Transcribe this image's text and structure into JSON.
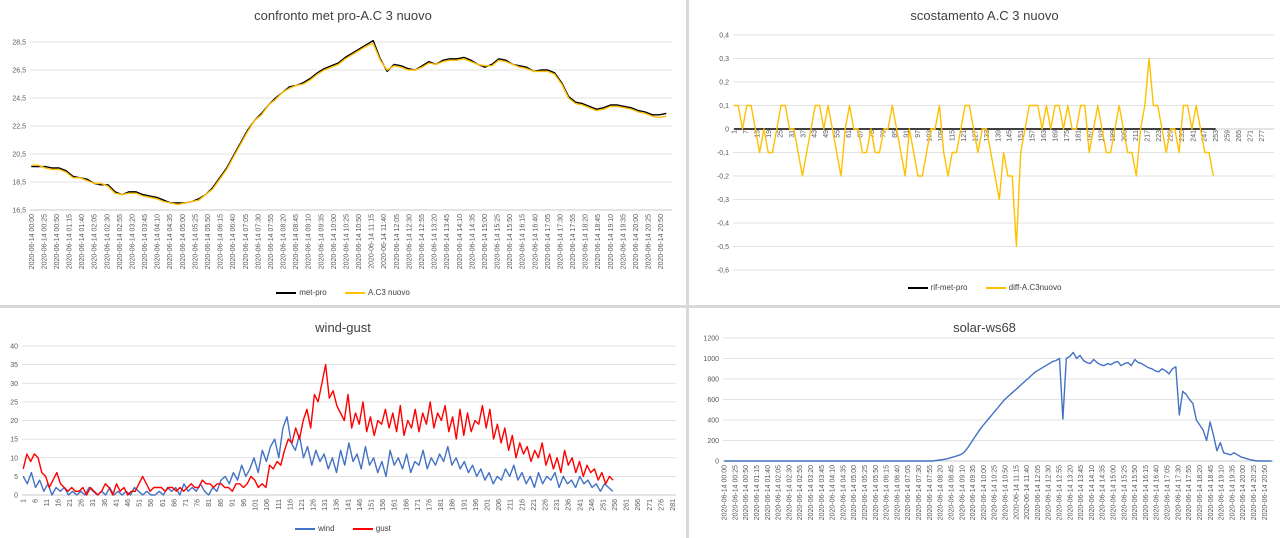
{
  "colors": {
    "black": "#000000",
    "orange": "#ffc000",
    "blue": "#4472c4",
    "red": "#ff0000",
    "grid": "#d9d9d9",
    "text": "#595959"
  },
  "chart_data": [
    {
      "type": "line",
      "title": "confronto met pro-A.C 3 nuovo",
      "ylim": [
        16.5,
        29.5
      ],
      "yticks": [
        "16,5",
        "18,5",
        "20,5",
        "22,5",
        "24,5",
        "26,5",
        "28,5"
      ],
      "xticks": [
        "2020-06-14 00:00",
        "2020-06-14 00:25",
        "2020-06-14 00:50",
        "2020-06-14 01:15",
        "2020-06-14 01:40",
        "2020-06-14 02:05",
        "2020-06-14 02:30",
        "2020-06-14 02:55",
        "2020-06-14 03:20",
        "2020-06-14 03:45",
        "2020-06-14 04:10",
        "2020-06-14 04:35",
        "2020-06-14 05:00",
        "2020-06-14 05:25",
        "2020-06-14 05:50",
        "2020-06-14 06:15",
        "2020-06-14 06:40",
        "2020-06-14 07:05",
        "2020-06-14 07:30",
        "2020-06-14 07:55",
        "2020-06-14 08:20",
        "2020-06-14 08:45",
        "2020-06-14 09:10",
        "2020-06-14 09:35",
        "2020-06-14 10:00",
        "2020-06-14 10:25",
        "2020-06-14 10:50",
        "2020-06-14 11:15",
        "2020-06-14 11:40",
        "2020-06-14 12:05",
        "2020-06-14 12:30",
        "2020-06-14 12:55",
        "2020-06-14 13:20",
        "2020-06-14 13:45",
        "2020-06-14 14:10",
        "2020-06-14 14:35",
        "2020-06-14 15:00",
        "2020-06-14 15:25",
        "2020-06-14 15:50",
        "2020-06-14 16:15",
        "2020-06-14 16:40",
        "2020-06-14 17:05",
        "2020-06-14 17:30",
        "2020-06-14 17:55",
        "2020-06-14 18:20",
        "2020-06-14 18:45",
        "2020-06-14 19:10",
        "2020-06-14 19:35",
        "2020-06-14 20:00",
        "2020-06-14 20:25",
        "2020-06-14 20:50"
      ],
      "x_interval_points": 5,
      "series": [
        {
          "name": "met-pro",
          "color": "#000000",
          "values": [
            19.6,
            19.6,
            19.6,
            19.5,
            19.5,
            19.3,
            18.9,
            18.8,
            18.7,
            18.4,
            18.3,
            18.3,
            17.8,
            17.6,
            17.8,
            17.8,
            17.6,
            17.5,
            17.4,
            17.2,
            17.0,
            17.0,
            17.0,
            17.1,
            17.3,
            17.6,
            18.1,
            18.8,
            19.5,
            20.4,
            21.3,
            22.2,
            22.9,
            23.4,
            24.0,
            24.5,
            24.9,
            25.3,
            25.4,
            25.6,
            25.9,
            26.3,
            26.6,
            26.8,
            27.0,
            27.4,
            27.7,
            28.0,
            28.3,
            28.6,
            27.3,
            26.4,
            26.9,
            26.8,
            26.6,
            26.5,
            26.8,
            27.1,
            26.9,
            27.2,
            27.3,
            27.3,
            27.4,
            27.2,
            26.9,
            26.7,
            26.9,
            27.3,
            27.2,
            26.9,
            26.8,
            26.7,
            26.4,
            26.5,
            26.5,
            26.3,
            25.6,
            24.6,
            24.2,
            24.1,
            23.9,
            23.7,
            23.8,
            24.0,
            24.0,
            23.9,
            23.8,
            23.6,
            23.5,
            23.3,
            23.3,
            23.4
          ]
        },
        {
          "name": "A.C3 nuovo",
          "color": "#ffc000",
          "values": [
            19.7,
            19.7,
            19.5,
            19.4,
            19.4,
            19.2,
            18.8,
            18.8,
            18.6,
            18.4,
            18.4,
            18.2,
            17.7,
            17.6,
            17.7,
            17.7,
            17.5,
            17.4,
            17.3,
            17.1,
            17.0,
            16.9,
            17.0,
            17.1,
            17.2,
            17.6,
            18.0,
            18.7,
            19.4,
            20.3,
            21.2,
            22.1,
            22.9,
            23.3,
            24.0,
            24.4,
            24.9,
            25.2,
            25.4,
            25.5,
            25.8,
            26.2,
            26.5,
            26.7,
            26.9,
            27.3,
            27.6,
            27.9,
            28.2,
            28.4,
            27.2,
            26.5,
            26.8,
            26.7,
            26.5,
            26.5,
            26.7,
            27.0,
            26.9,
            27.1,
            27.2,
            27.2,
            27.3,
            27.1,
            26.9,
            26.8,
            26.8,
            27.2,
            27.1,
            26.9,
            26.7,
            26.6,
            26.4,
            26.4,
            26.4,
            26.2,
            25.5,
            24.5,
            24.1,
            24.0,
            23.8,
            23.6,
            23.7,
            23.9,
            23.9,
            23.8,
            23.7,
            23.5,
            23.4,
            23.2,
            23.1,
            23.2
          ]
        }
      ]
    },
    {
      "type": "line",
      "title": "scostamento A.C 3 nuovo",
      "ylim": [
        -0.6,
        0.4
      ],
      "yticks": [
        "-0,6",
        "-0,5",
        "-0,4",
        "-0,3",
        "-0,2",
        "-0,1",
        "0",
        "0,1",
        "0,2",
        "0,3",
        "0,4"
      ],
      "xticks": [
        "1",
        "7",
        "13",
        "19",
        "25",
        "31",
        "37",
        "43",
        "49",
        "55",
        "61",
        "67",
        "73",
        "79",
        "85",
        "91",
        "97",
        "103",
        "109",
        "115",
        "121",
        "127",
        "133",
        "139",
        "145",
        "151",
        "157",
        "163",
        "169",
        "175",
        "181",
        "187",
        "193",
        "199",
        "205",
        "211",
        "217",
        "223",
        "229",
        "235",
        "241",
        "247",
        "253",
        "259",
        "265",
        "271",
        "277"
      ],
      "xmax": 283,
      "series": [
        {
          "name": "rif-met-pro",
          "color": "#000000",
          "constant": 0,
          "length": 253
        },
        {
          "name": "diff-A.C3nuovo",
          "color": "#ffc000",
          "values": [
            0.1,
            0.1,
            0,
            0.1,
            0.1,
            0,
            -0.1,
            0,
            -0.1,
            -0.1,
            0,
            0.1,
            0.1,
            0,
            0,
            -0.1,
            -0.2,
            -0.1,
            0,
            0.1,
            0.1,
            0,
            0.1,
            0,
            -0.1,
            -0.2,
            0,
            0.1,
            0,
            0,
            -0.1,
            -0.1,
            0,
            -0.1,
            -0.1,
            0,
            0,
            0.1,
            0,
            -0.1,
            -0.2,
            0,
            -0.1,
            -0.2,
            -0.2,
            -0.1,
            0,
            0,
            0.1,
            -0.1,
            -0.2,
            -0.1,
            -0.1,
            0,
            0.1,
            0.1,
            0,
            -0.1,
            0,
            0,
            -0.1,
            -0.2,
            -0.3,
            -0.1,
            -0.2,
            -0.2,
            -0.5,
            -0.1,
            0,
            0.1,
            0.1,
            0.1,
            0,
            0.1,
            0,
            0.1,
            0.1,
            0,
            0.1,
            0,
            0,
            0.1,
            0.1,
            -0.1,
            0,
            0.1,
            0,
            -0.1,
            -0.1,
            0,
            0.1,
            0,
            -0.1,
            -0.1,
            -0.2,
            0,
            0.1,
            0.3,
            0.1,
            0.1,
            0,
            -0.1,
            0,
            0,
            -0.1,
            0.1,
            0.1,
            0,
            0.1,
            0,
            -0.1,
            -0.1,
            -0.2
          ]
        }
      ]
    },
    {
      "type": "line",
      "title": "wind-gust",
      "ylim": [
        0,
        40
      ],
      "yticks": [
        "0",
        "5",
        "10",
        "15",
        "20",
        "25",
        "30",
        "35",
        "40"
      ],
      "xticks": [
        "1",
        "6",
        "11",
        "16",
        "21",
        "26",
        "31",
        "36",
        "41",
        "46",
        "51",
        "56",
        "61",
        "66",
        "71",
        "76",
        "81",
        "86",
        "91",
        "96",
        "101",
        "106",
        "111",
        "116",
        "121",
        "126",
        "131",
        "136",
        "141",
        "146",
        "151",
        "156",
        "161",
        "166",
        "171",
        "176",
        "181",
        "186",
        "191",
        "196",
        "201",
        "206",
        "211",
        "216",
        "221",
        "226",
        "231",
        "236",
        "241",
        "246",
        "251",
        "256",
        "261",
        "266",
        "271",
        "276",
        "281"
      ],
      "xmax": 282,
      "series": [
        {
          "name": "wind",
          "color": "#4472c4",
          "values": [
            5,
            3,
            6,
            2,
            4,
            1,
            3,
            0,
            2,
            1,
            2,
            0,
            1,
            0,
            1,
            0,
            2,
            1,
            0,
            1,
            0,
            2,
            0,
            1,
            0,
            1,
            0,
            2,
            1,
            0,
            1,
            0,
            0,
            1,
            0,
            2,
            1,
            2,
            0,
            3,
            1,
            2,
            1,
            3,
            1,
            0,
            2,
            1,
            4,
            5,
            3,
            6,
            4,
            8,
            5,
            7,
            10,
            6,
            12,
            9,
            13,
            15,
            10,
            18,
            21,
            14,
            12,
            16,
            10,
            13,
            8,
            12,
            9,
            11,
            7,
            10,
            6,
            12,
            8,
            14,
            9,
            11,
            7,
            13,
            8,
            10,
            6,
            9,
            5,
            12,
            8,
            10,
            7,
            11,
            6,
            9,
            8,
            12,
            7,
            10,
            8,
            11,
            9,
            13,
            8,
            10,
            7,
            9,
            6,
            8,
            5,
            7,
            4,
            6,
            3,
            5,
            4,
            7,
            5,
            8,
            4,
            6,
            3,
            5,
            2,
            6,
            3,
            5,
            4,
            6,
            2,
            5,
            3,
            4,
            2,
            5,
            3,
            4,
            2,
            3,
            1,
            3,
            2,
            1
          ]
        },
        {
          "name": "gust",
          "color": "#ff0000",
          "values": [
            7,
            11,
            9,
            11,
            10,
            6,
            5,
            2,
            4,
            6,
            3,
            2,
            1,
            2,
            1,
            1,
            2,
            0,
            2,
            1,
            0,
            1,
            3,
            2,
            0,
            3,
            1,
            2,
            0,
            1,
            1,
            3,
            5,
            3,
            1,
            2,
            2,
            2,
            1,
            2,
            2,
            1,
            2,
            1,
            2,
            3,
            2,
            2,
            4,
            3,
            3,
            2,
            3,
            3,
            2,
            2,
            1,
            3,
            3,
            2,
            3,
            5,
            4,
            2,
            3,
            2,
            8,
            7,
            9,
            8,
            12,
            15,
            14,
            18,
            15,
            20,
            23,
            18,
            27,
            25,
            30,
            35,
            26,
            28,
            24,
            22,
            20,
            27,
            18,
            22,
            19,
            25,
            17,
            21,
            16,
            20,
            19,
            23,
            18,
            22,
            17,
            24,
            16,
            20,
            18,
            23,
            17,
            22,
            19,
            25,
            18,
            22,
            20,
            24,
            17,
            21,
            15,
            23,
            16,
            22,
            17,
            20,
            19,
            24,
            18,
            23,
            15,
            19,
            14,
            18,
            12,
            16,
            10,
            14,
            11,
            13,
            9,
            12,
            10,
            14,
            8,
            11,
            7,
            10,
            6,
            12,
            8,
            10,
            6,
            9,
            5,
            8,
            6,
            7,
            4,
            6,
            3,
            5,
            4
          ]
        }
      ]
    },
    {
      "type": "line",
      "title": "solar-ws68",
      "ylim": [
        0,
        1200
      ],
      "yticks": [
        "0",
        "200",
        "400",
        "600",
        "800",
        "1000",
        "1200"
      ],
      "xticks": [
        "2020-06-14 00:00",
        "2020-06-14 00:25",
        "2020-06-14 00:50",
        "2020-06-14 01:15",
        "2020-06-14 01:40",
        "2020-06-14 02:05",
        "2020-06-14 02:30",
        "2020-06-14 02:55",
        "2020-06-14 03:20",
        "2020-06-14 03:45",
        "2020-06-14 04:10",
        "2020-06-14 04:35",
        "2020-06-14 05:00",
        "2020-06-14 05:25",
        "2020-06-14 05:50",
        "2020-06-14 06:15",
        "2020-06-14 06:40",
        "2020-06-14 07:05",
        "2020-06-14 07:30",
        "2020-06-14 07:55",
        "2020-06-14 08:20",
        "2020-06-14 08:45",
        "2020-06-14 09:10",
        "2020-06-14 09:35",
        "2020-06-14 10:00",
        "2020-06-14 10:25",
        "2020-06-14 10:50",
        "2020-06-14 11:15",
        "2020-06-14 11:40",
        "2020-06-14 12:05",
        "2020-06-14 12:30",
        "2020-06-14 12:55",
        "2020-06-14 13:20",
        "2020-06-14 13:45",
        "2020-06-14 14:10",
        "2020-06-14 14:35",
        "2020-06-14 15:00",
        "2020-06-14 15:25",
        "2020-06-14 15:50",
        "2020-06-14 16:15",
        "2020-06-14 16:40",
        "2020-06-14 17:05",
        "2020-06-14 17:30",
        "2020-06-14 17:55",
        "2020-06-14 18:20",
        "2020-06-14 18:45",
        "2020-06-14 19:10",
        "2020-06-14 19:35",
        "2020-06-14 20:00",
        "2020-06-14 20:25",
        "2020-06-14 20:50"
      ],
      "x_interval_points": 5,
      "series": [
        {
          "name": "",
          "color": "#4472c4",
          "values": [
            0,
            0,
            0,
            0,
            0,
            0,
            0,
            0,
            0,
            0,
            0,
            0,
            0,
            0,
            0,
            0,
            0,
            0,
            0,
            0,
            0,
            0,
            0,
            0,
            0,
            0,
            0,
            0,
            0,
            0,
            0,
            0,
            0,
            0,
            0,
            0,
            0,
            0,
            0,
            0,
            0,
            0,
            0,
            0,
            0,
            0,
            0,
            0,
            0,
            0,
            0,
            0,
            0,
            0,
            0,
            0,
            0,
            0,
            0,
            0,
            0,
            0,
            5,
            10,
            15,
            20,
            30,
            40,
            50,
            60,
            80,
            120,
            170,
            220,
            270,
            320,
            360,
            400,
            440,
            480,
            520,
            560,
            600,
            630,
            660,
            690,
            720,
            750,
            780,
            810,
            840,
            870,
            890,
            910,
            930,
            950,
            970,
            980,
            1000,
            410,
            1000,
            1020,
            1060,
            1000,
            1030,
            980,
            960,
            950,
            990,
            960,
            940,
            930,
            950,
            940,
            960,
            970,
            930,
            950,
            960,
            930,
            990,
            960,
            950,
            930,
            910,
            900,
            880,
            870,
            900,
            880,
            850,
            900,
            920,
            450,
            680,
            650,
            600,
            560,
            400,
            350,
            300,
            200,
            380,
            250,
            100,
            180,
            80,
            70,
            60,
            80,
            60,
            40,
            30,
            20,
            10,
            5,
            0,
            0,
            0,
            0,
            0
          ]
        }
      ]
    }
  ]
}
